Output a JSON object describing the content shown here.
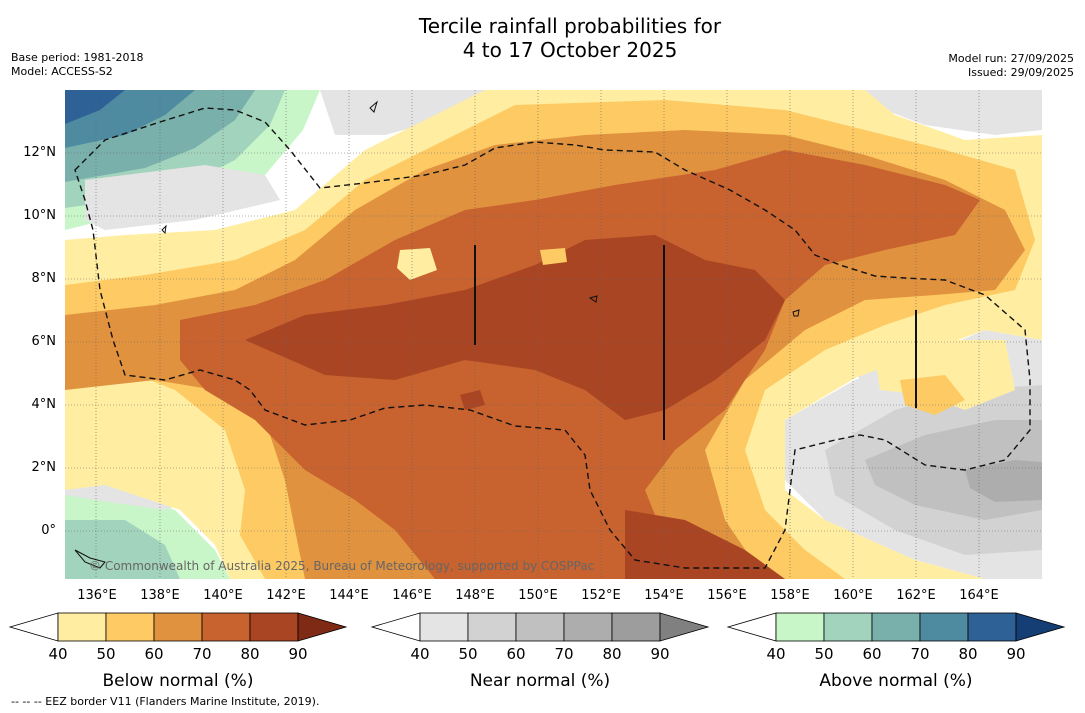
{
  "title": {
    "line1": "Tercile rainfall probabilities for",
    "line2": "4 to 17 October 2025"
  },
  "meta_left": {
    "base_period": "Base period: 1981-2018",
    "model": "Model: ACCESS-S2"
  },
  "meta_right": {
    "model_run": "Model run: 27/09/2025",
    "issued": "Issued: 29/09/2025"
  },
  "map": {
    "lon_range": [
      135,
      166
    ],
    "lat_range": [
      -1.5,
      14
    ],
    "lat_ticks": [
      "12°N",
      "10°N",
      "8°N",
      "6°N",
      "4°N",
      "2°N",
      "0°"
    ],
    "lon_ticks": [
      "136°E",
      "138°E",
      "140°E",
      "142°E",
      "144°E",
      "146°E",
      "148°E",
      "150°E",
      "152°E",
      "154°E",
      "156°E",
      "158°E",
      "160°E",
      "162°E",
      "164°E"
    ],
    "copyright": "© Commonwealth of Australia 2025, Bureau of Meteorology, supported by COSPPac"
  },
  "legends": [
    {
      "label": "Below normal (%)",
      "ticks": [
        "40",
        "50",
        "60",
        "70",
        "80",
        "90"
      ],
      "colors": [
        "#ffeea1",
        "#fdca63",
        "#e0923f",
        "#c8622f",
        "#a94523",
        "#7f2a14"
      ]
    },
    {
      "label": "Near normal (%)",
      "ticks": [
        "40",
        "50",
        "60",
        "70",
        "80",
        "90"
      ],
      "colors": [
        "#e4e4e4",
        "#d2d2d2",
        "#c0c0c0",
        "#adadad",
        "#9d9d9d",
        "#808080"
      ]
    },
    {
      "label": "Above normal (%)",
      "ticks": [
        "40",
        "50",
        "60",
        "70",
        "80",
        "90"
      ],
      "colors": [
        "#c8f6c8",
        "#a2d3bd",
        "#7ab0ab",
        "#4f8ba0",
        "#2e6196",
        "#153e75"
      ]
    }
  ],
  "footer": "--  --  -- EEZ border V11 (Flanders Marine Institute, 2019)."
}
